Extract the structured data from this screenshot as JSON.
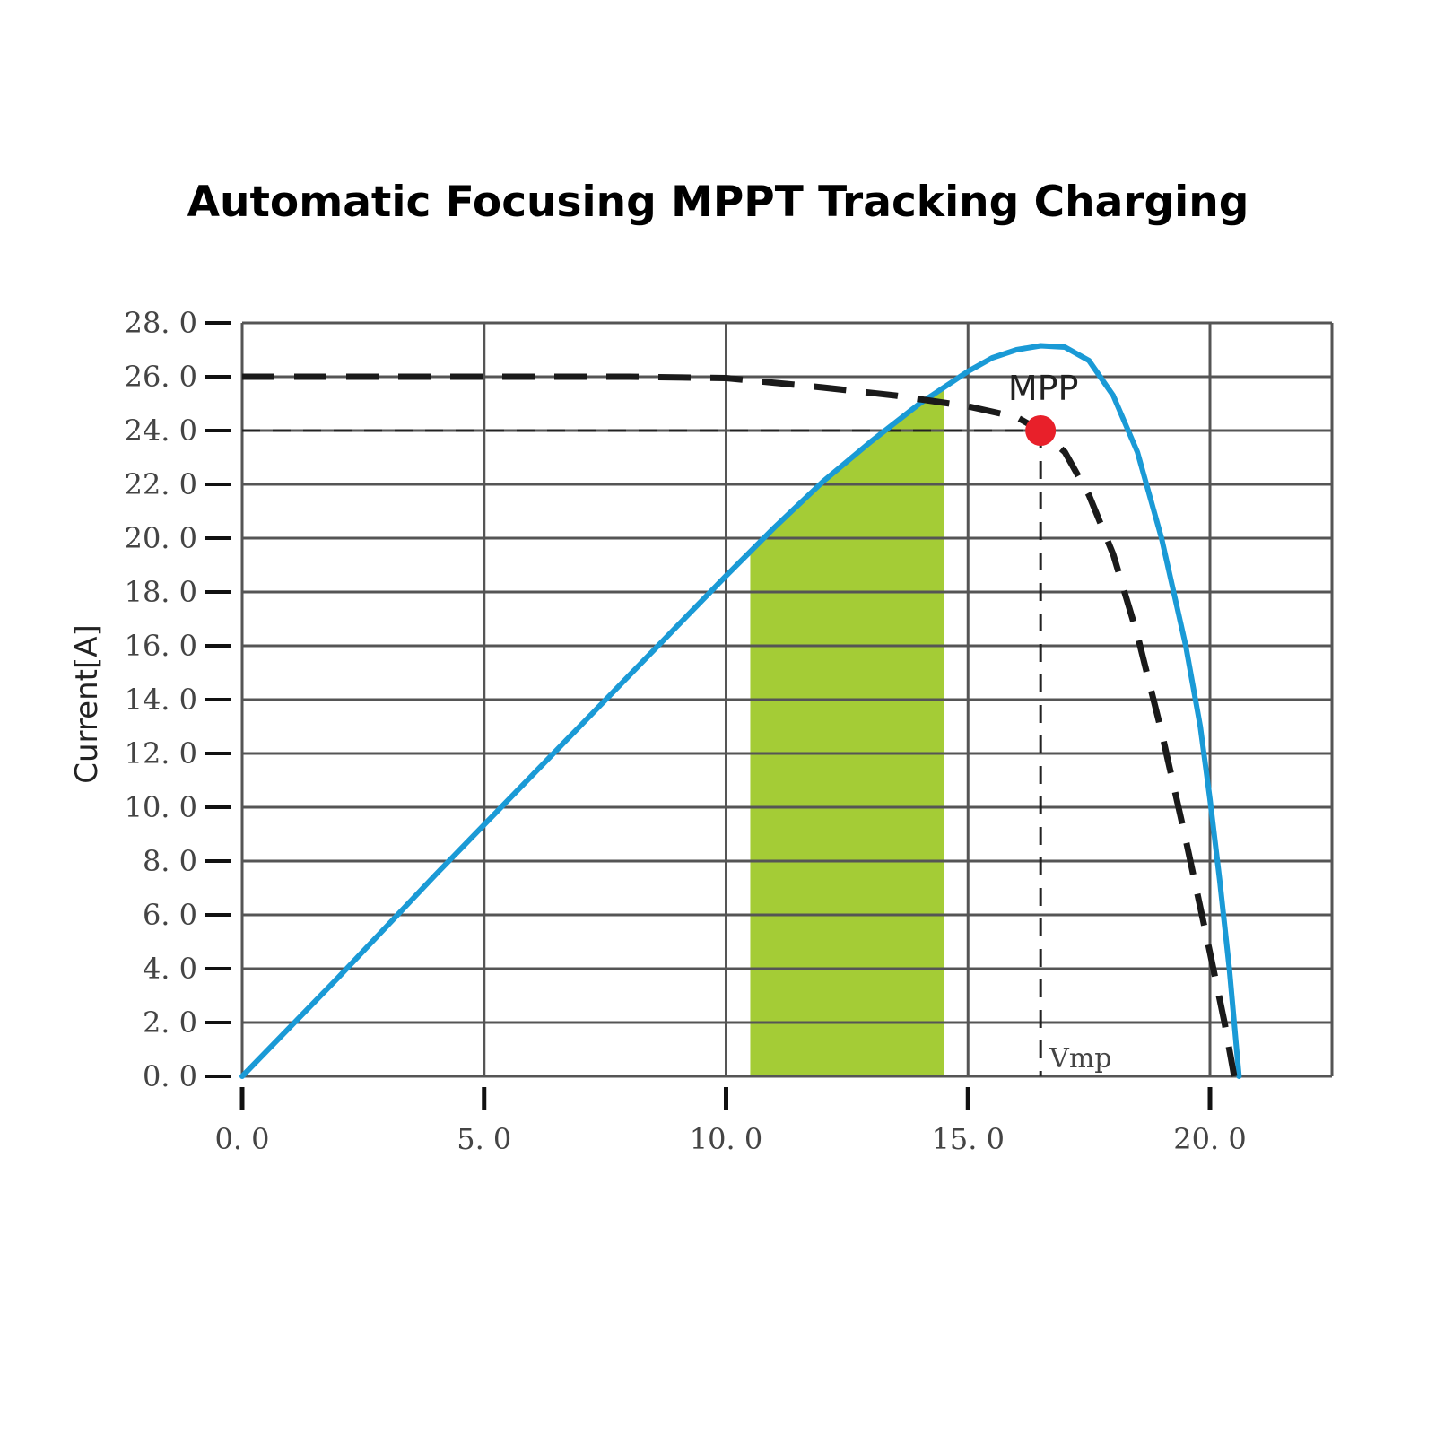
{
  "title": "Automatic Focusing MPPT Tracking Charging",
  "chart_data": {
    "type": "line",
    "title": "Automatic Focusing MPPT Tracking Charging",
    "xlabel": "",
    "ylabel": "Current[A]",
    "xlim": [
      0,
      22.5
    ],
    "ylim": [
      0,
      28
    ],
    "grid": true,
    "x_ticks": [
      0,
      5,
      10,
      15,
      20
    ],
    "x_tick_labels": [
      "0. 0",
      "5. 0",
      "10. 0",
      "15. 0",
      "20. 0"
    ],
    "y_ticks": [
      0,
      2,
      4,
      6,
      8,
      10,
      12,
      14,
      16,
      18,
      20,
      22,
      24,
      26,
      28
    ],
    "y_tick_labels": [
      "0. 0",
      "2. 0",
      "4. 0",
      "6. 0",
      "8. 0",
      "10. 0",
      "12. 0",
      "14. 0",
      "16. 0",
      "18. 0",
      "20. 0",
      "22. 0",
      "24. 0",
      "26. 0",
      "28. 0"
    ],
    "series": [
      {
        "style": "solid",
        "color": "#1a9ad6",
        "x": [
          0,
          2,
          4,
          6,
          8,
          10,
          11,
          12,
          13,
          14,
          15,
          15.5,
          16,
          16.5,
          17,
          17.5,
          18,
          18.5,
          19,
          19.5,
          19.8,
          20,
          20.2,
          20.4,
          20.6
        ],
        "y": [
          0,
          3.7,
          7.5,
          11.2,
          14.9,
          18.6,
          20.4,
          22.1,
          23.6,
          25.0,
          26.2,
          26.7,
          27.0,
          27.15,
          27.1,
          26.6,
          25.3,
          23.2,
          20.0,
          16.0,
          13.0,
          10.3,
          7.3,
          4.0,
          0
        ]
      },
      {
        "style": "dashed",
        "color": "#1a1a1a",
        "x": [
          0,
          5,
          8,
          10,
          12,
          13.5,
          15,
          16,
          16.5,
          17,
          17.5,
          18,
          18.5,
          19,
          19.5,
          20,
          20.3,
          20.5
        ],
        "y": [
          26,
          26,
          26,
          25.95,
          25.6,
          25.3,
          24.9,
          24.5,
          24,
          23.2,
          21.6,
          19.4,
          16.4,
          12.8,
          8.8,
          4.6,
          2.0,
          0
        ]
      }
    ],
    "shaded_region": {
      "color": "#a4cc36",
      "x_start": 10.5,
      "x_end": 14.5
    },
    "mpp": {
      "label": "MPP",
      "x": 16.5,
      "y": 24,
      "color": "#e8202a"
    },
    "vmp_label": "Vmp"
  }
}
